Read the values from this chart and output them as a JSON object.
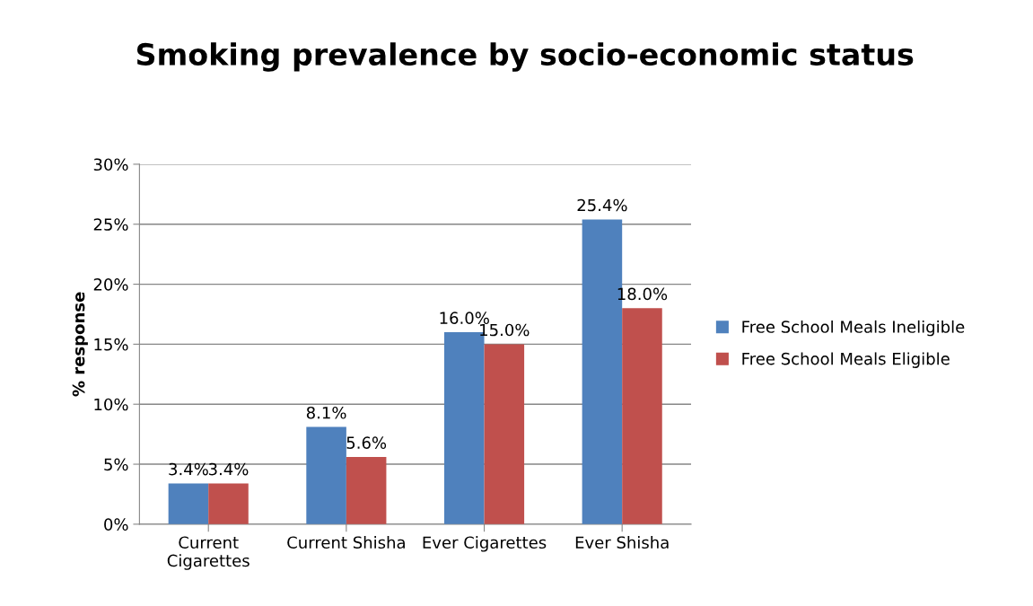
{
  "chart_data": {
    "type": "bar",
    "title": "Smoking prevalence by socio-economic status",
    "ylabel": "% response",
    "categories": [
      "Current Cigarettes",
      "Current Shisha",
      "Ever Cigarettes",
      "Ever Shisha"
    ],
    "series": [
      {
        "name": "Free School Meals Ineligible",
        "color": "#4f81bd",
        "values": [
          3.4,
          8.1,
          16.0,
          25.4
        ],
        "value_labels": [
          "3.4%",
          "8.1%",
          "16.0%",
          "25.4%"
        ]
      },
      {
        "name": "Free School Meals Eligible",
        "color": "#c0504d",
        "values": [
          3.4,
          5.6,
          15.0,
          18.0
        ],
        "value_labels": [
          "3.4%",
          "5.6%",
          "15.0%",
          "18.0%"
        ]
      }
    ],
    "ylim": [
      0,
      30
    ],
    "yticks": [
      {
        "value": 0,
        "label": "0%"
      },
      {
        "value": 5,
        "label": "5%"
      },
      {
        "value": 10,
        "label": "10%"
      },
      {
        "value": 15,
        "label": "15%"
      },
      {
        "value": 20,
        "label": "20%"
      },
      {
        "value": 25,
        "label": "25%"
      },
      {
        "value": 30,
        "label": "30%"
      }
    ],
    "grid": "y",
    "legend": "right"
  }
}
